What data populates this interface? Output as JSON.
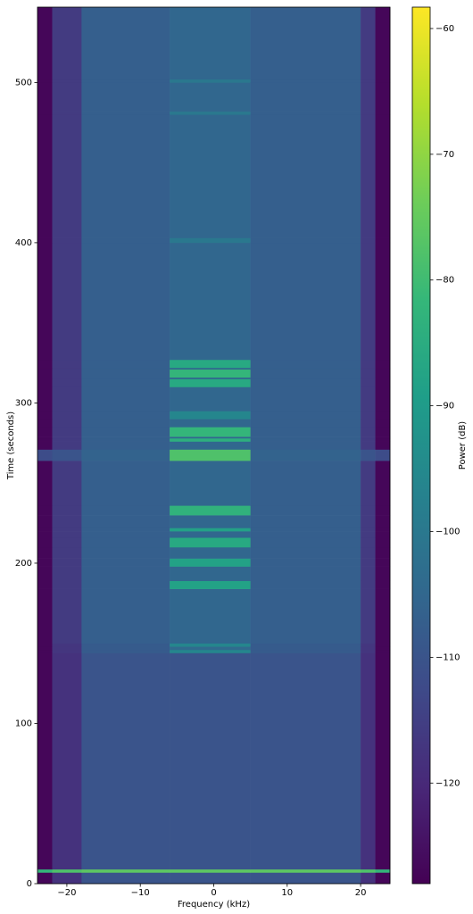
{
  "chart_data": {
    "type": "spectrogram",
    "xlabel": "Frequency (kHz)",
    "ylabel": "Time (seconds)",
    "colorbar_label": "Power (dB)",
    "colormap": "viridis",
    "xlim": [
      -24,
      24
    ],
    "ylim": [
      0,
      547
    ],
    "clim": [
      -128,
      -58.3
    ],
    "xticks": [
      {
        "value": -20,
        "label": "−20"
      },
      {
        "value": -10,
        "label": "−10"
      },
      0,
      10,
      20
    ],
    "yticks": [
      0,
      100,
      200,
      300,
      400,
      500
    ],
    "cticks": [
      {
        "value": -120,
        "label": "−120"
      },
      {
        "value": -110,
        "label": "−110"
      },
      {
        "value": -100,
        "label": "−100"
      },
      {
        "value": -90,
        "label": "−90"
      },
      {
        "value": -80,
        "label": "−80"
      },
      {
        "value": -70,
        "label": "−70"
      },
      {
        "value": -60,
        "label": "−60"
      }
    ],
    "x_bins": [
      -24,
      -22,
      -18,
      -6,
      5,
      20,
      22,
      24
    ],
    "y_bins": [
      0,
      7,
      9,
      144,
      146,
      148,
      150,
      184,
      189,
      198,
      203,
      210,
      216,
      220,
      222,
      230,
      236,
      264,
      271,
      276,
      278,
      279,
      285,
      290,
      295,
      310,
      315,
      316,
      321,
      322,
      327,
      400,
      403,
      480,
      482,
      500,
      502,
      547
    ],
    "values": [
      [
        -127,
        -118,
        -110,
        -110,
        -110,
        -118,
        -127
      ],
      [
        -82,
        -78,
        -76,
        -76,
        -76,
        -78,
        -82
      ],
      [
        -127,
        -118,
        -110,
        -110,
        -110,
        -118,
        -127
      ],
      [
        -127,
        -117,
        -108,
        -96,
        -108,
        -117,
        -127
      ],
      [
        -127,
        -117,
        -108,
        -104,
        -108,
        -117,
        -127
      ],
      [
        -127,
        -117,
        -108,
        -96,
        -108,
        -117,
        -127
      ],
      [
        -127,
        -116,
        -107,
        -105,
        -107,
        -116,
        -127
      ],
      [
        -127,
        -116,
        -107,
        -88,
        -107,
        -116,
        -127
      ],
      [
        -127,
        -116,
        -107,
        -105,
        -107,
        -116,
        -127
      ],
      [
        -127,
        -116,
        -107,
        -88,
        -107,
        -116,
        -127
      ],
      [
        -127,
        -116,
        -107,
        -105,
        -107,
        -116,
        -127
      ],
      [
        -127,
        -116,
        -107,
        -86,
        -107,
        -116,
        -127
      ],
      [
        -127,
        -116,
        -107,
        -105,
        -107,
        -116,
        -127
      ],
      [
        -127,
        -116,
        -107,
        -88,
        -107,
        -116,
        -127
      ],
      [
        -127,
        -116,
        -107,
        -105,
        -107,
        -116,
        -127
      ],
      [
        -127,
        -116,
        -107,
        -83,
        -107,
        -116,
        -127
      ],
      [
        -127,
        -116,
        -107,
        -105,
        -107,
        -116,
        -127
      ],
      [
        -112,
        -110,
        -106,
        -78,
        -106,
        -110,
        -112
      ],
      [
        -127,
        -116,
        -107,
        -105,
        -107,
        -116,
        -127
      ],
      [
        -127,
        -116,
        -107,
        -84,
        -107,
        -116,
        -127
      ],
      [
        -127,
        -116,
        -107,
        -105,
        -107,
        -116,
        -127
      ],
      [
        -127,
        -116,
        -107,
        -82,
        -107,
        -116,
        -127
      ],
      [
        -127,
        -116,
        -107,
        -105,
        -107,
        -116,
        -127
      ],
      [
        -127,
        -116,
        -107,
        -96,
        -107,
        -116,
        -127
      ],
      [
        -127,
        -116,
        -107,
        -105,
        -107,
        -116,
        -127
      ],
      [
        -127,
        -116,
        -107,
        -86,
        -107,
        -116,
        -127
      ],
      [
        -127,
        -116,
        -107,
        -105,
        -107,
        -116,
        -127
      ],
      [
        -127,
        -116,
        -107,
        -82,
        -107,
        -116,
        -127
      ],
      [
        -127,
        -116,
        -107,
        -105,
        -107,
        -116,
        -127
      ],
      [
        -127,
        -116,
        -107,
        -86,
        -107,
        -116,
        -127
      ],
      [
        -127,
        -116,
        -107,
        -105,
        -107,
        -116,
        -127
      ],
      [
        -127,
        -116,
        -107,
        -100,
        -107,
        -116,
        -127
      ],
      [
        -127,
        -116,
        -107,
        -105,
        -107,
        -116,
        -127
      ],
      [
        -127,
        -116,
        -107,
        -100,
        -107,
        -116,
        -127
      ],
      [
        -127,
        -116,
        -107,
        -105,
        -107,
        -116,
        -127
      ],
      [
        -127,
        -116,
        -107,
        -100,
        -107,
        -116,
        -127
      ],
      [
        -127,
        -116,
        -107,
        -105,
        -107,
        -116,
        -127
      ]
    ]
  }
}
